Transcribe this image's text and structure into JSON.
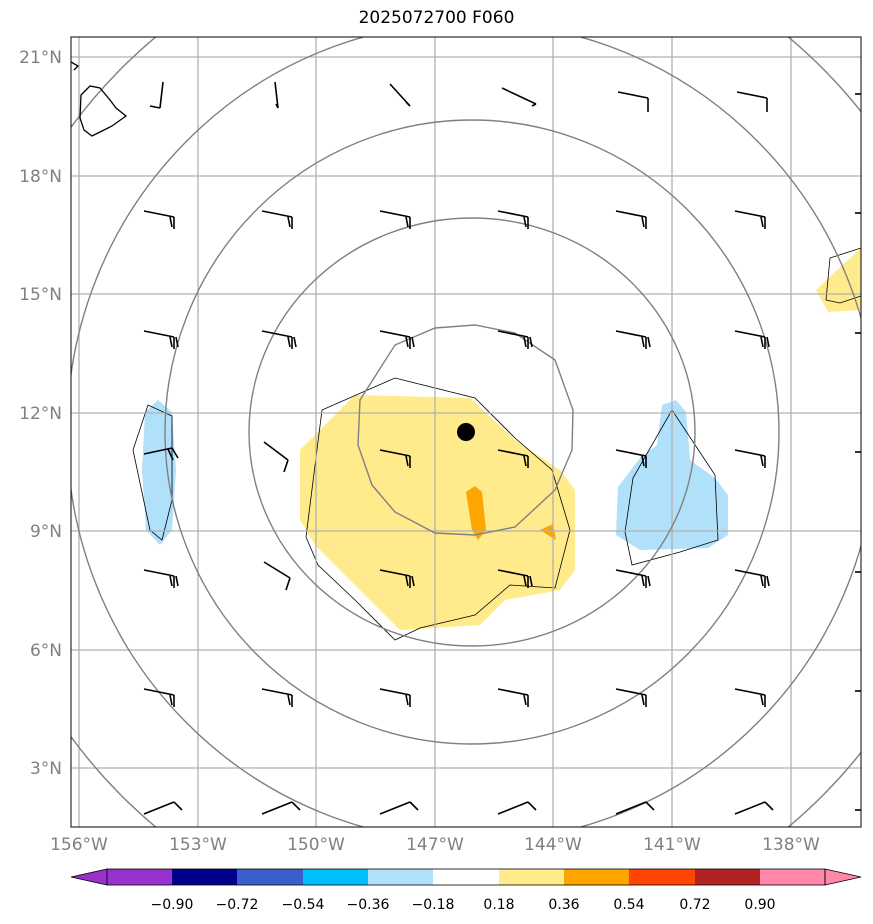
{
  "title": "2025072700 F060",
  "map": {
    "lat_ticks": [
      "21°N",
      "18°N",
      "15°N",
      "12°N",
      "9°N",
      "6°N",
      "3°N"
    ],
    "lon_ticks": [
      "156°W",
      "153°W",
      "150°W",
      "147°W",
      "144°W",
      "141°W",
      "138°W"
    ],
    "extent": {
      "lon": [
        -156.3,
        -136.2
      ],
      "lat": [
        1.5,
        21.5
      ]
    },
    "storm_center": {
      "lon": -145.8,
      "lat": 11.5
    },
    "contour_rings": 5,
    "shaded_features": [
      {
        "name": "positive anomaly",
        "category": "0.18 to 0.36",
        "color": "#ffea8c"
      },
      {
        "name": "positive core",
        "category": "0.36 to 0.54",
        "color": "#ffa500"
      },
      {
        "name": "negative anomaly west",
        "category": "-0.36 to -0.18",
        "color": "#b0e0fa"
      },
      {
        "name": "negative anomaly east",
        "category": "-0.36 to -0.18",
        "color": "#b0e0fa"
      }
    ]
  },
  "colorbar": {
    "labels": [
      "−0.90",
      "−0.72",
      "−0.54",
      "−0.36",
      "−0.18",
      "0.18",
      "0.36",
      "0.54",
      "0.72",
      "0.90"
    ],
    "colors": [
      "#9932cc",
      "#00008b",
      "#3a5fcd",
      "#00bfff",
      "#b0e0fa",
      "#ffffff",
      "#ffea8c",
      "#ffa500",
      "#ff4500",
      "#b22222",
      "#ff88aa"
    ]
  }
}
